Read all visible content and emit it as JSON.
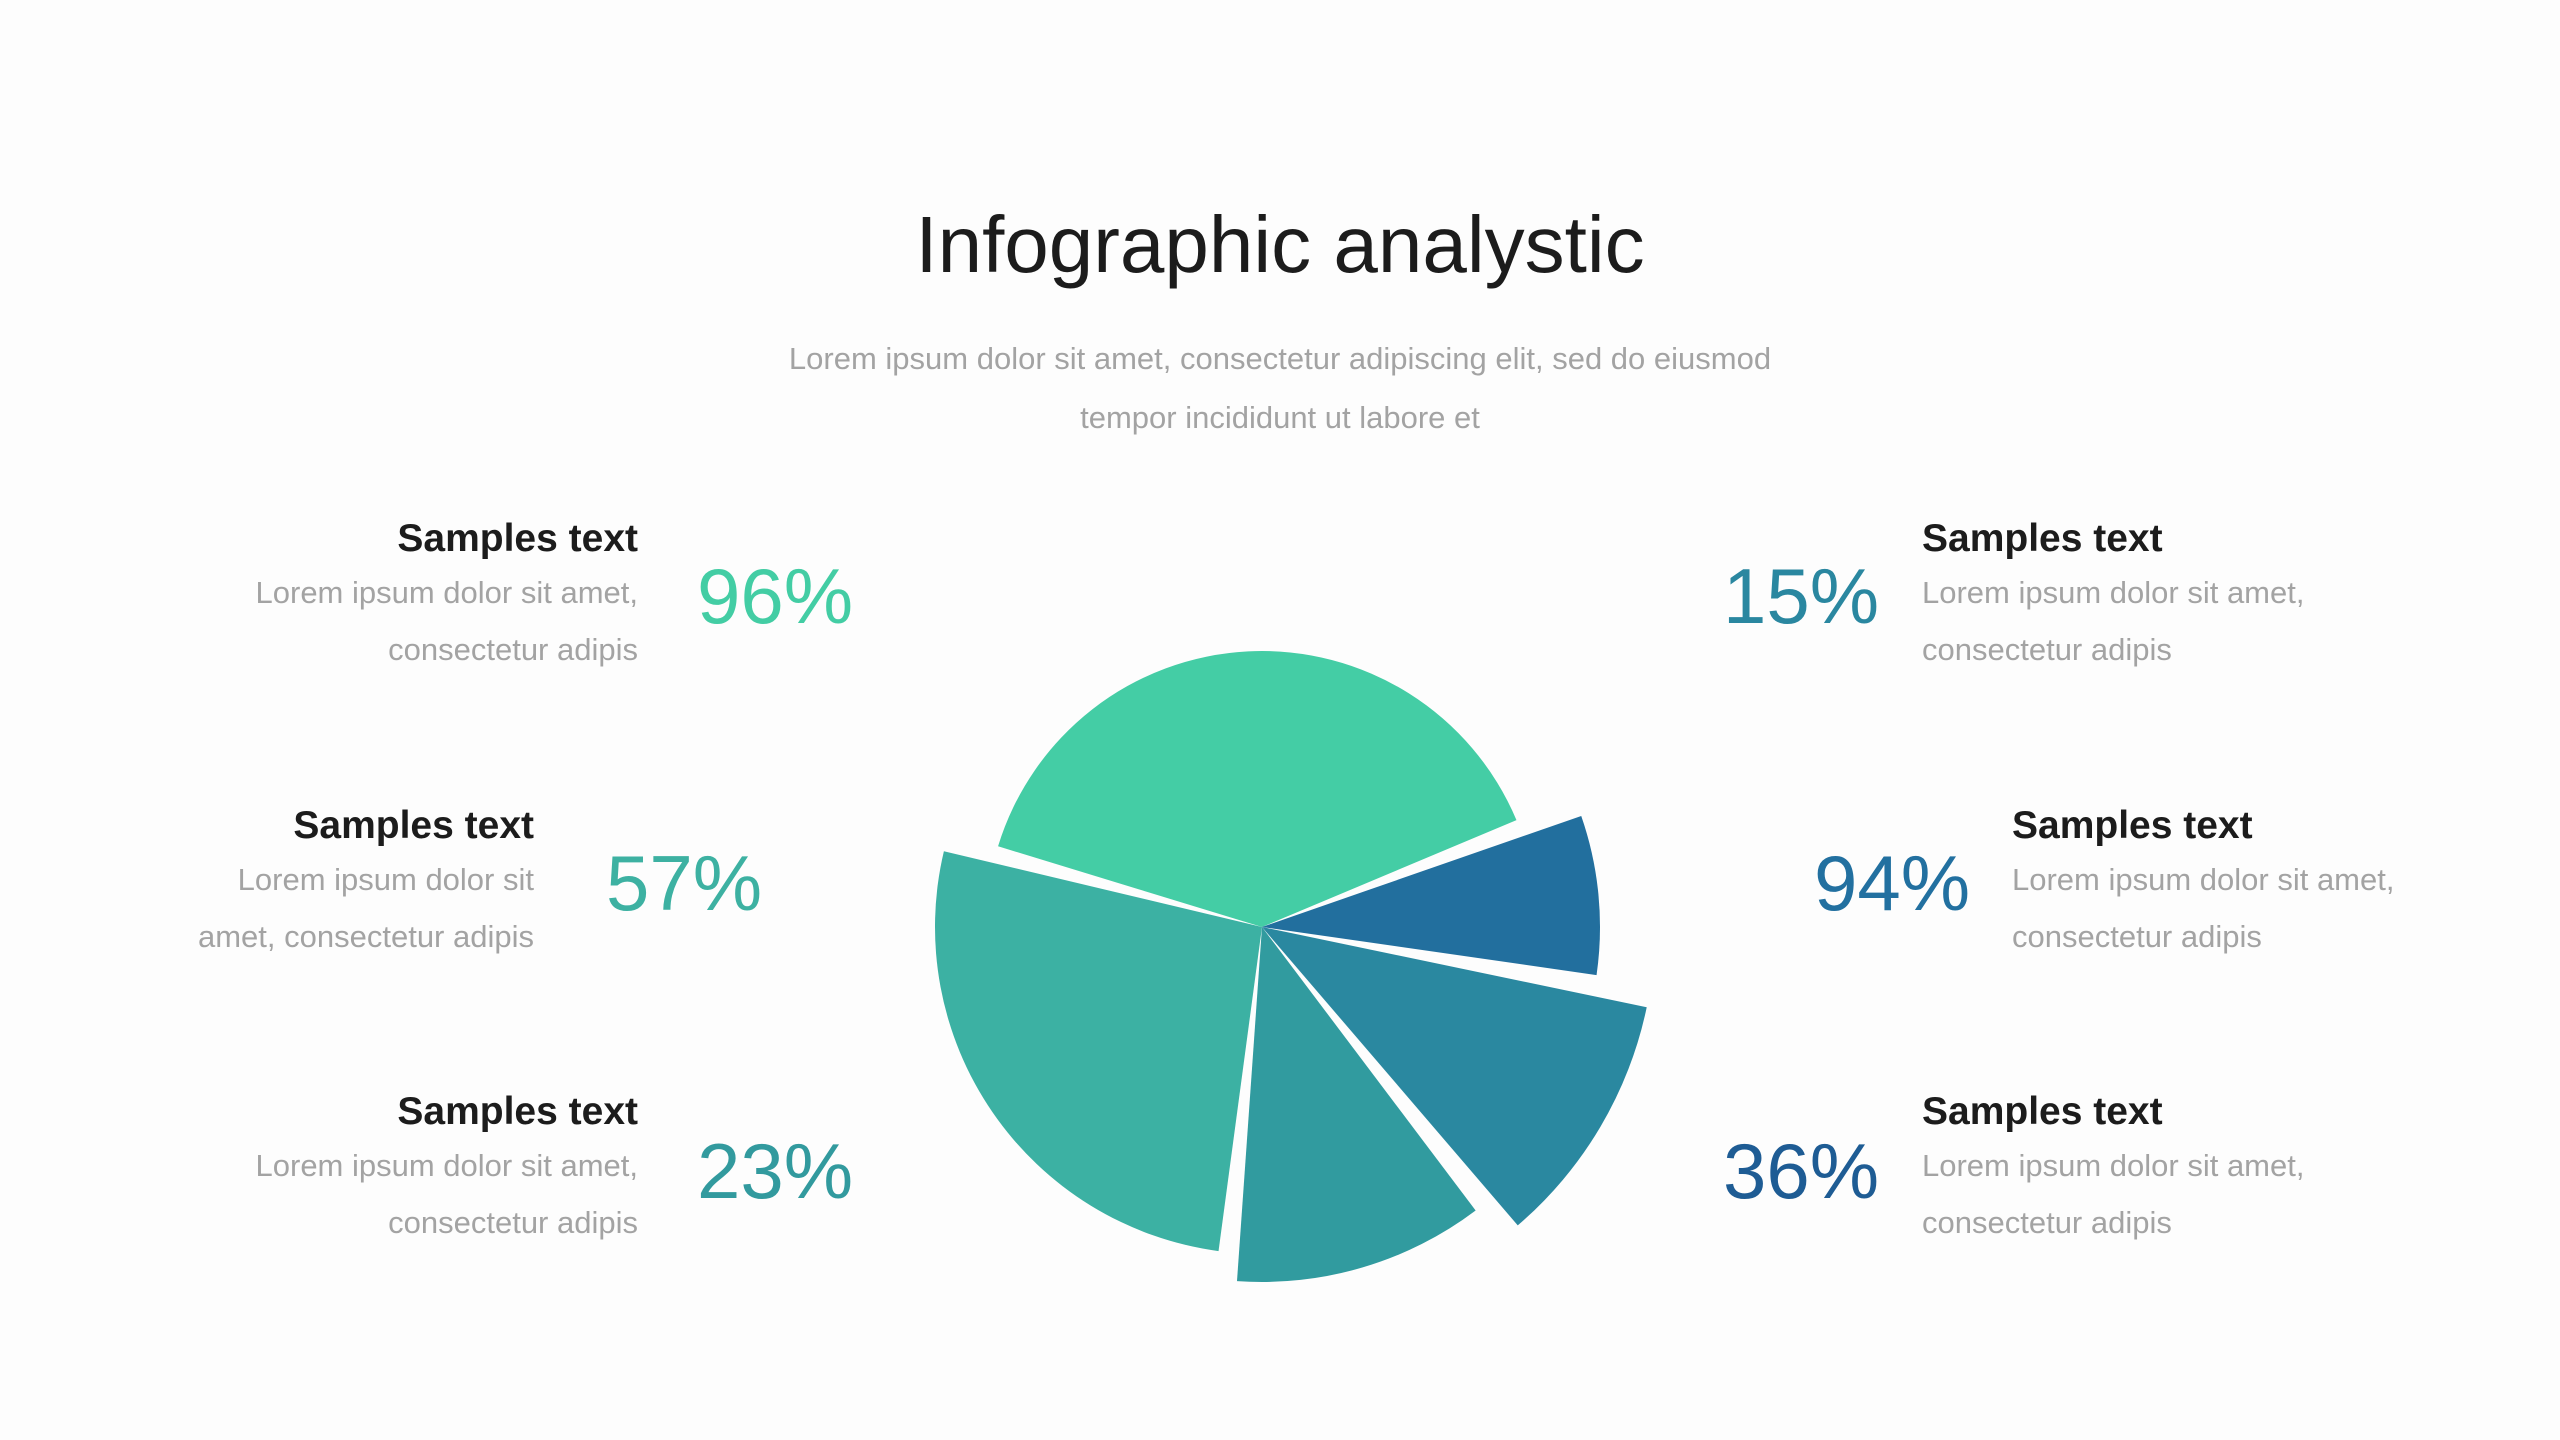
{
  "title": "Infographic analystic",
  "subtitle": [
    "Lorem ipsum dolor sit amet, consectetur adipiscing elit, sed do eiusmod",
    "tempor incididunt ut labore et"
  ],
  "items": [
    {
      "heading": "Samples text",
      "lines": [
        "Lorem ipsum dolor sit amet,",
        "consectetur adipis"
      ],
      "percent": "96%",
      "color": "#43cda4"
    },
    {
      "heading": "Samples text",
      "lines": [
        "Lorem ipsum dolor sit",
        "amet, consectetur adipis"
      ],
      "percent": "57%",
      "color": "#3db1a2"
    },
    {
      "heading": "Samples text",
      "lines": [
        "Lorem ipsum dolor sit amet,",
        "consectetur adipis"
      ],
      "percent": "23%",
      "color": "#329a9e"
    },
    {
      "heading": "Samples text",
      "lines": [
        "Lorem ipsum dolor sit amet,",
        "consectetur adipis"
      ],
      "percent": "15%",
      "color": "#2a87a0"
    },
    {
      "heading": "Samples text",
      "lines": [
        "Lorem ipsum dolor sit amet,",
        "consectetur adipis"
      ],
      "percent": "94%",
      "color": "#2270a0"
    },
    {
      "heading": "Samples text",
      "lines": [
        "Lorem ipsum dolor sit amet,",
        "consectetur adipis"
      ],
      "percent": "36%",
      "color": "#1e5c94"
    }
  ],
  "chart_data": {
    "type": "pie",
    "values": [
      41,
      8,
      11,
      12,
      28
    ],
    "colors": [
      "#44cda5",
      "#226f9e",
      "#2a88a0",
      "#319b9f",
      "#3cb1a3"
    ],
    "exploded": true
  }
}
